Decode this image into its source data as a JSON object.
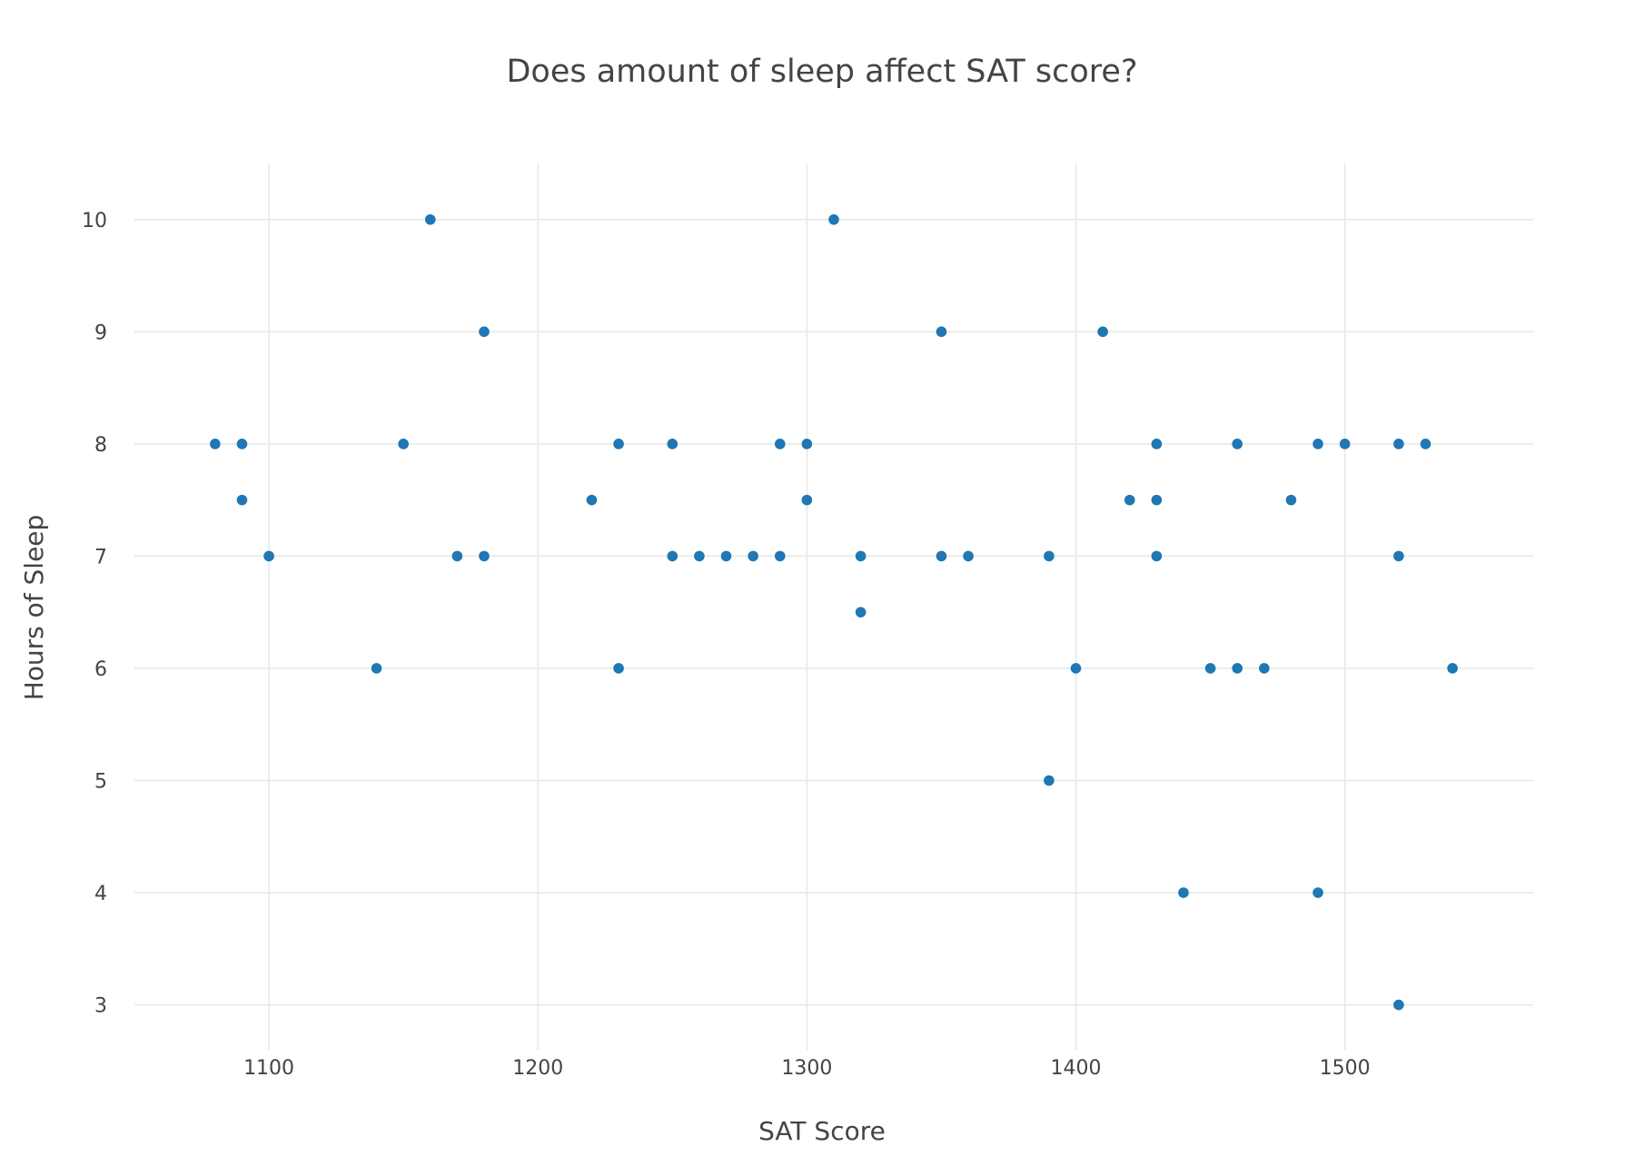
{
  "chart_data": {
    "type": "scatter",
    "title": "Does amount of sleep affect SAT score?",
    "xlabel": "SAT Score",
    "ylabel": "Hours of Sleep",
    "xlim": [
      1050,
      1570
    ],
    "ylim": [
      2.6,
      10.5
    ],
    "xticks": [
      1100,
      1200,
      1300,
      1400,
      1500
    ],
    "yticks": [
      3,
      4,
      5,
      6,
      7,
      8,
      9,
      10
    ],
    "grid": true,
    "marker_color": "#1f77b4",
    "series": [
      {
        "x": [
          1080,
          1090,
          1090,
          1100,
          1140,
          1150,
          1160,
          1170,
          1180,
          1180,
          1220,
          1230,
          1230,
          1250,
          1250,
          1260,
          1270,
          1280,
          1290,
          1290,
          1300,
          1300,
          1310,
          1320,
          1320,
          1350,
          1350,
          1360,
          1390,
          1390,
          1400,
          1410,
          1420,
          1430,
          1430,
          1430,
          1440,
          1450,
          1460,
          1460,
          1470,
          1480,
          1490,
          1490,
          1500,
          1520,
          1520,
          1520,
          1530,
          1540
        ],
        "y": [
          8,
          8,
          7.5,
          7,
          6,
          8,
          10,
          7,
          9,
          7,
          7.5,
          8,
          6,
          8,
          7,
          7,
          7,
          7,
          8,
          7,
          8,
          7.5,
          10,
          7,
          6.5,
          9,
          7,
          7,
          7,
          5,
          6,
          9,
          7.5,
          8,
          7.5,
          7,
          4,
          6,
          8,
          6,
          6,
          7.5,
          8,
          4,
          8,
          8,
          7,
          3,
          8,
          6
        ]
      }
    ]
  }
}
